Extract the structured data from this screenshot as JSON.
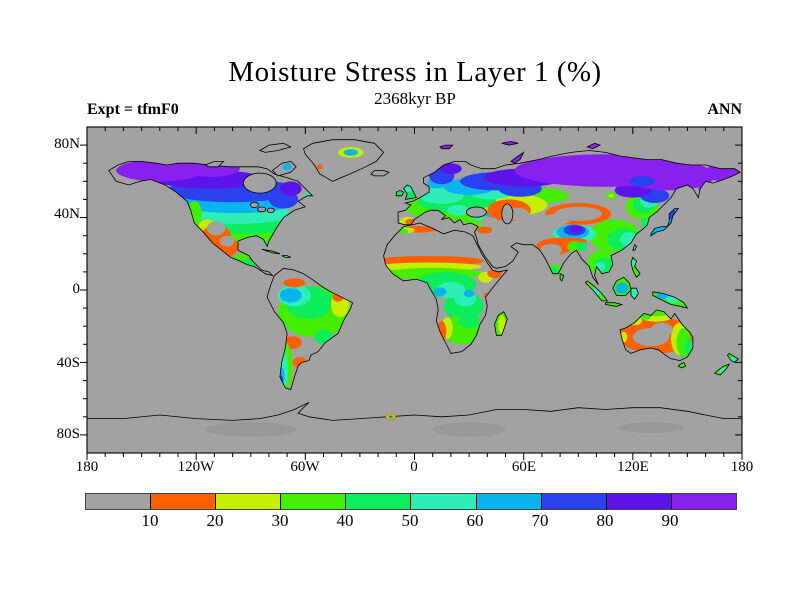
{
  "header": {
    "title": "Moisture Stress in Layer 1 (%)",
    "subtitle": "2368kyr BP",
    "experiment": "Expt = tfmF0",
    "season": "ANN"
  },
  "axes": {
    "lat_ticks": [
      "80N",
      "40N",
      "0",
      "40S",
      "80S"
    ],
    "lon_ticks": [
      "180",
      "120W",
      "60W",
      "0",
      "60E",
      "120E",
      "180"
    ]
  },
  "colorbar": {
    "labels": [
      "10",
      "20",
      "30",
      "40",
      "50",
      "60",
      "70",
      "80",
      "90"
    ],
    "colors": [
      "#a2a2a2",
      "#ff5f00",
      "#c4ef00",
      "#44ee00",
      "#0cec5c",
      "#2deeb4",
      "#0ab4f0",
      "#2b40ee",
      "#5c14ea",
      "#8a20f0"
    ]
  },
  "map": {
    "ocean_color": "#a2a2a2",
    "coastline_color": "#000000",
    "no_data_color": "#a2a2a2"
  },
  "chart_data": {
    "type": "heatmap",
    "subtype": "filled-contour world map, equirectangular 180W-180E / 90S-90N",
    "title": "Moisture Stress in Layer 1 (%)",
    "subtitle": "2368kyr BP",
    "experiment": "Expt = tfmF0",
    "season": "ANN",
    "units": "%",
    "contour_levels": [
      10,
      20,
      30,
      40,
      50,
      60,
      70,
      80,
      90
    ],
    "bins": [
      {
        "range": "<10 / no data (ocean, deserts, ice)",
        "color": "#a2a2a2"
      },
      {
        "range": "10-20",
        "color": "#ff5f00"
      },
      {
        "range": "20-30",
        "color": "#c4ef00"
      },
      {
        "range": "30-40",
        "color": "#44ee00"
      },
      {
        "range": "40-50",
        "color": "#0cec5c"
      },
      {
        "range": "50-60",
        "color": "#2deeb4"
      },
      {
        "range": "60-70",
        "color": "#0ab4f0"
      },
      {
        "range": "70-80",
        "color": "#2b40ee"
      },
      {
        "range": "80-90",
        "color": "#5c14ea"
      },
      {
        "range": "90-100",
        "color": "#8a20f0"
      }
    ],
    "xlabel_ticks": [
      "180",
      "120W",
      "60W",
      "0",
      "60E",
      "120E",
      "180"
    ],
    "ylabel_ticks": [
      "80N",
      "40N",
      "0",
      "40S",
      "80S"
    ],
    "regional_values": [
      {
        "region": "Alaska / NW Canada",
        "value_pct": "90-100"
      },
      {
        "region": "Central Canada",
        "value_pct": "70-90"
      },
      {
        "region": "Northern / Eastern US",
        "value_pct": "50-70"
      },
      {
        "region": "Southeastern US",
        "value_pct": "40-60"
      },
      {
        "region": "SW US / N Mexico deserts",
        "value_pct": "0-20"
      },
      {
        "region": "Greenland interior",
        "value_pct": "no data with 20-70 pocket"
      },
      {
        "region": "NW Amazon",
        "value_pct": "60-70"
      },
      {
        "region": "Amazon basin / Brazil",
        "value_pct": "30-60"
      },
      {
        "region": "E Brazil fringe",
        "value_pct": "10-30"
      },
      {
        "region": "Argentina",
        "value_pct": "<10 with 10-20 patches"
      },
      {
        "region": "Patagonia / S Chile",
        "value_pct": "30-70"
      },
      {
        "region": "Sahara / Arabia / Middle East",
        "value_pct": "<10"
      },
      {
        "region": "Sahel band",
        "value_pct": "10-40"
      },
      {
        "region": "Congo basin",
        "value_pct": "40-70"
      },
      {
        "region": "Southern Africa",
        "value_pct": "20-40, Namib coast 10-20"
      },
      {
        "region": "Western / Central Europe",
        "value_pct": "30-60"
      },
      {
        "region": "Scandinavia",
        "value_pct": "70-90"
      },
      {
        "region": "Northern Siberia",
        "value_pct": "90-100"
      },
      {
        "region": "Southern Russia",
        "value_pct": "50-80"
      },
      {
        "region": "Kazakhstan / Gobi deserts",
        "value_pct": "<10 ringed by 10-30"
      },
      {
        "region": "Tibetan Plateau",
        "value_pct": "60-90"
      },
      {
        "region": "India",
        "value_pct": "<10 with 10-20 fringe"
      },
      {
        "region": "Eastern China",
        "value_pct": "30-60"
      },
      {
        "region": "Southeast Asia / Indonesia",
        "value_pct": "30-70"
      },
      {
        "region": "Japan",
        "value_pct": "60-80"
      },
      {
        "region": "Australia interior",
        "value_pct": "<10"
      },
      {
        "region": "Australia ring",
        "value_pct": "10-20, east coast 20-50"
      },
      {
        "region": "New Guinea / New Zealand",
        "value_pct": "30-60"
      },
      {
        "region": "Antarctica",
        "value_pct": "no data"
      }
    ]
  }
}
